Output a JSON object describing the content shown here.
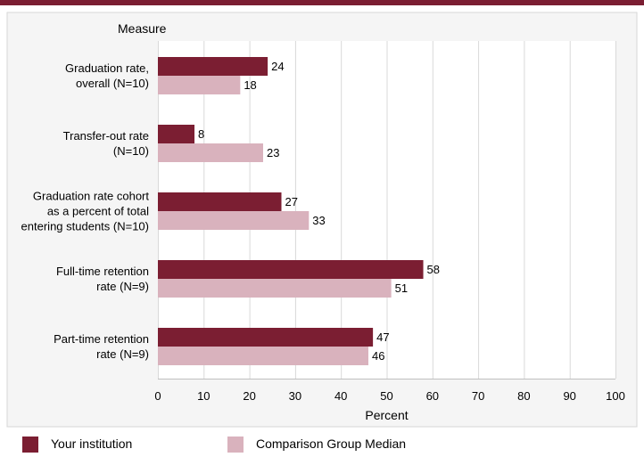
{
  "chart_data": {
    "type": "bar",
    "orientation": "horizontal",
    "y_header": "Measure",
    "categories": [
      [
        "Graduation rate,",
        "overall (N=10)"
      ],
      [
        "Transfer-out rate",
        "(N=10)"
      ],
      [
        "Graduation rate cohort",
        "as a percent of total",
        "entering students (N=10)"
      ],
      [
        "Full-time retention",
        "rate (N=9)"
      ],
      [
        "Part-time retention",
        "rate (N=9)"
      ]
    ],
    "series": [
      {
        "name": "Your institution",
        "color": "#7b1e32",
        "values": [
          24,
          8,
          27,
          58,
          47
        ]
      },
      {
        "name": "Comparison Group Median",
        "color": "#d9b2bd",
        "values": [
          18,
          23,
          33,
          51,
          46
        ]
      }
    ],
    "xlabel": "Percent",
    "xlim": [
      0,
      100
    ],
    "xticks": [
      0,
      10,
      20,
      30,
      40,
      50,
      60,
      70,
      80,
      90,
      100
    ],
    "grid": true,
    "legend_position": "bottom"
  }
}
